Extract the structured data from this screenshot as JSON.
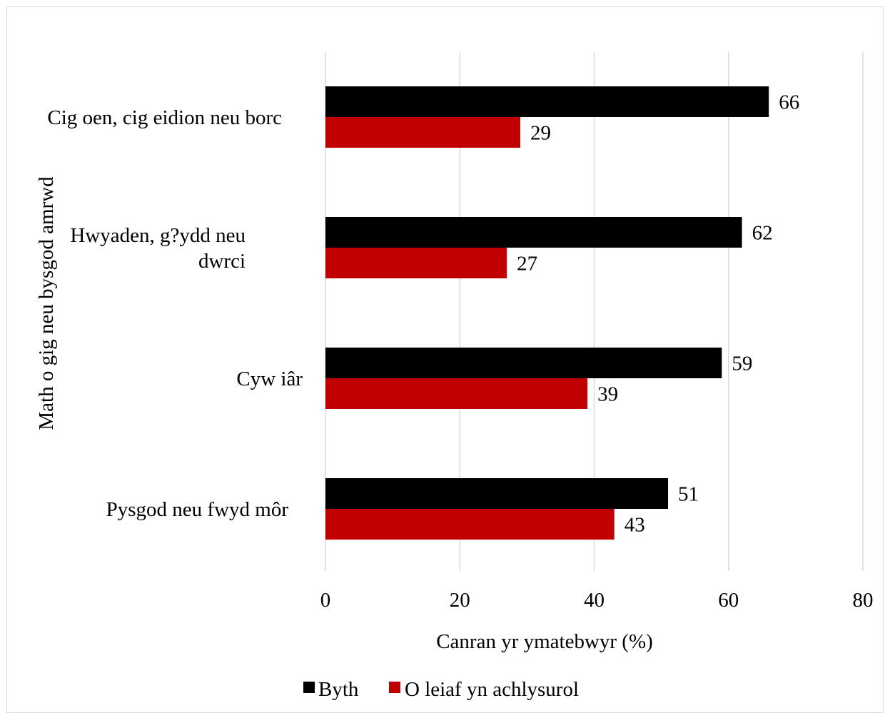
{
  "chart_data": {
    "type": "bar",
    "orientation": "horizontal",
    "categories": [
      "Cig oen, cig eidion neu borc",
      "Hwyaden, g?ydd neu dwrci",
      "Cyw iâr",
      "Pysgod neu fwyd môr"
    ],
    "category_lines": [
      [
        "Cig oen, cig eidion neu borc"
      ],
      [
        "Hwyaden, g?ydd neu",
        "dwrci"
      ],
      [
        "Cyw iâr"
      ],
      [
        "Pysgod neu fwyd môr"
      ]
    ],
    "series": [
      {
        "name": "Byth",
        "color": "#000000",
        "values": [
          66,
          62,
          59,
          51
        ]
      },
      {
        "name": "O leiaf yn achlysurol",
        "color": "#c00000",
        "values": [
          29,
          27,
          39,
          43
        ]
      }
    ],
    "xlabel": "Canran yr ymatebwyr (%)",
    "ylabel": "Math o gig neu bysgod amrwd",
    "xlim": [
      0,
      80
    ],
    "xticks": [
      "0",
      "20",
      "40",
      "60",
      "80"
    ],
    "grid": true,
    "legend": "bottom",
    "gridline_color": "#d9d9d9"
  }
}
